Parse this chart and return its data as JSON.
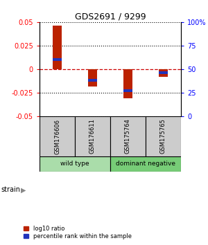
{
  "title": "GDS2691 / 9299",
  "samples": [
    "GSM176606",
    "GSM176611",
    "GSM175764",
    "GSM175765"
  ],
  "log10_ratio": [
    0.046,
    -0.018,
    -0.031,
    -0.008
  ],
  "percentile_rank": [
    60,
    38,
    27,
    46
  ],
  "groups": [
    {
      "name": "wild type",
      "samples": [
        0,
        1
      ],
      "color": "#aaddaa"
    },
    {
      "name": "dominant negative",
      "samples": [
        2,
        3
      ],
      "color": "#77cc77"
    }
  ],
  "group_label": "strain",
  "ylim": [
    -0.05,
    0.05
  ],
  "yticks_left": [
    -0.05,
    -0.025,
    0,
    0.025,
    0.05
  ],
  "yticks_right": [
    0,
    25,
    50,
    75,
    100
  ],
  "bar_width": 0.25,
  "red_bar_color": "#bb2200",
  "blue_bar_color": "#2233bb",
  "grid_color": "#000000",
  "zero_line_color": "#cc0000",
  "bg_color": "#ffffff",
  "sample_box_color": "#cccccc",
  "legend_red": "log10 ratio",
  "legend_blue": "percentile rank within the sample"
}
